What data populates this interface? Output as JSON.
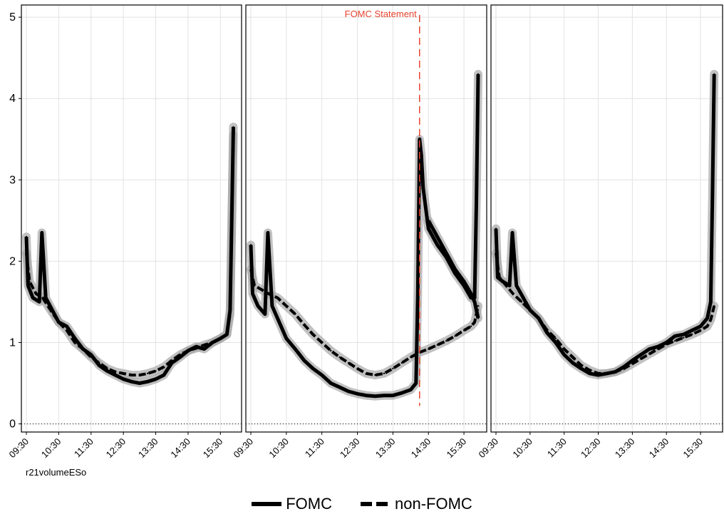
{
  "chart_data": {
    "type": "line",
    "caption": "r21volumeESo",
    "y_ticks": [
      0,
      1,
      2,
      3,
      4,
      5
    ],
    "ylim": [
      -0.1,
      5.15
    ],
    "x_tick_labels": [
      "09:30",
      "10:30",
      "11:30",
      "12:30",
      "13:30",
      "14:30",
      "15:30"
    ],
    "xlim": [
      9.5,
      16.0
    ],
    "grid": true,
    "legend": {
      "placement": "bottom",
      "entries": [
        {
          "label": "FOMC",
          "style": "solid"
        },
        {
          "label": "non-FOMC",
          "style": "dashed"
        }
      ]
    },
    "colors": {
      "series": "#000000",
      "band": "#a6a6a6",
      "annotation": "#e8442e",
      "grid": "#e2e2e2"
    },
    "panels": [
      {
        "annotation": null,
        "series": [
          {
            "name": "FOMC",
            "style": "solid",
            "x": [
              9.5,
              9.55,
              9.7,
              9.9,
              9.98,
              10.1,
              10.3,
              10.5,
              10.75,
              11.0,
              11.25,
              11.5,
              11.75,
              12.0,
              12.25,
              12.5,
              12.75,
              13.0,
              13.25,
              13.5,
              13.75,
              14.0,
              14.25,
              14.5,
              14.75,
              15.0,
              15.25,
              15.5,
              15.7,
              15.8,
              15.85,
              15.9
            ],
            "y": [
              2.3,
              1.7,
              1.55,
              1.5,
              2.35,
              1.55,
              1.4,
              1.25,
              1.2,
              1.05,
              0.92,
              0.85,
              0.72,
              0.65,
              0.6,
              0.55,
              0.52,
              0.5,
              0.52,
              0.55,
              0.6,
              0.75,
              0.82,
              0.9,
              0.95,
              0.92,
              1.0,
              1.05,
              1.1,
              1.4,
              2.5,
              3.65
            ]
          },
          {
            "name": "non-FOMC",
            "style": "dashed",
            "x": [
              9.5,
              9.6,
              9.8,
              10.0,
              10.25,
              10.5,
              10.75,
              11.0,
              11.25,
              11.5,
              11.75,
              12.0,
              12.25,
              12.5,
              12.75,
              13.0,
              13.25,
              13.5,
              13.75,
              14.0,
              14.25,
              14.5,
              14.75,
              15.0,
              15.25,
              15.5,
              15.7,
              15.8,
              15.85,
              15.9
            ],
            "y": [
              2.1,
              1.75,
              1.6,
              1.55,
              1.4,
              1.25,
              1.15,
              1.0,
              0.92,
              0.82,
              0.75,
              0.68,
              0.64,
              0.62,
              0.6,
              0.6,
              0.62,
              0.65,
              0.7,
              0.78,
              0.85,
              0.9,
              0.93,
              0.97,
              1.0,
              1.05,
              1.1,
              1.35,
              2.4,
              3.55
            ]
          }
        ]
      },
      {
        "annotation": {
          "label": "FOMC Statement",
          "x": 14.25
        },
        "series": [
          {
            "name": "FOMC",
            "style": "solid",
            "x": [
              9.5,
              9.55,
              9.7,
              9.9,
              9.98,
              10.1,
              10.3,
              10.5,
              10.75,
              11.0,
              11.25,
              11.5,
              11.75,
              12.0,
              12.25,
              12.5,
              12.75,
              13.0,
              13.25,
              13.5,
              13.75,
              14.0,
              14.15,
              14.2,
              14.25,
              14.3,
              14.35,
              14.5,
              14.75,
              15.0,
              15.25,
              15.5,
              15.7,
              15.8,
              15.85,
              15.9
            ],
            "y": [
              2.2,
              1.6,
              1.45,
              1.35,
              2.35,
              1.45,
              1.25,
              1.05,
              0.92,
              0.78,
              0.68,
              0.6,
              0.5,
              0.45,
              0.4,
              0.37,
              0.35,
              0.34,
              0.35,
              0.35,
              0.38,
              0.42,
              0.5,
              1.6,
              3.5,
              3.3,
              2.9,
              2.4,
              2.2,
              2.05,
              1.85,
              1.7,
              1.55,
              1.55,
              2.7,
              4.3
            ]
          },
          {
            "name": "non-FOMC",
            "style": "dashed",
            "x": [
              9.5,
              9.6,
              9.8,
              10.0,
              10.25,
              10.5,
              10.75,
              11.0,
              11.25,
              11.5,
              11.75,
              12.0,
              12.25,
              12.5,
              12.75,
              13.0,
              13.25,
              13.5,
              13.75,
              14.0,
              14.25,
              14.5,
              14.75,
              15.0,
              15.25,
              15.5,
              15.7,
              15.8,
              15.9
            ],
            "y": [
              1.9,
              1.7,
              1.65,
              1.6,
              1.55,
              1.45,
              1.35,
              1.22,
              1.1,
              1.0,
              0.9,
              0.82,
              0.75,
              0.68,
              0.62,
              0.6,
              0.62,
              0.68,
              0.75,
              0.82,
              0.88,
              0.92,
              0.97,
              1.02,
              1.08,
              1.15,
              1.2,
              1.25,
              1.45
            ]
          },
          {
            "name": "FOMC",
            "style": "solid",
            "x": [
              14.5,
              14.75,
              15.0,
              15.25,
              15.5,
              15.7,
              15.8,
              15.9
            ],
            "y": [
              2.5,
              2.3,
              2.1,
              1.9,
              1.75,
              1.6,
              1.5,
              1.3
            ]
          }
        ]
      },
      {
        "annotation": null,
        "series": [
          {
            "name": "FOMC",
            "style": "solid",
            "x": [
              9.5,
              9.55,
              9.7,
              9.9,
              9.98,
              10.1,
              10.3,
              10.5,
              10.75,
              11.0,
              11.25,
              11.5,
              11.75,
              12.0,
              12.25,
              12.5,
              12.75,
              13.0,
              13.25,
              13.5,
              13.75,
              14.0,
              14.25,
              14.5,
              14.75,
              15.0,
              15.25,
              15.5,
              15.7,
              15.8,
              15.85,
              15.9
            ],
            "y": [
              2.4,
              1.8,
              1.75,
              1.7,
              2.35,
              1.7,
              1.55,
              1.4,
              1.3,
              1.12,
              1.0,
              0.85,
              0.75,
              0.68,
              0.62,
              0.6,
              0.62,
              0.64,
              0.7,
              0.78,
              0.85,
              0.92,
              0.95,
              1.0,
              1.08,
              1.1,
              1.15,
              1.2,
              1.3,
              1.5,
              2.8,
              4.3
            ]
          },
          {
            "name": "non-FOMC",
            "style": "dashed",
            "x": [
              9.5,
              9.6,
              9.8,
              10.0,
              10.25,
              10.5,
              10.75,
              11.0,
              11.25,
              11.5,
              11.75,
              12.0,
              12.25,
              12.5,
              12.75,
              13.0,
              13.25,
              13.5,
              13.75,
              14.0,
              14.25,
              14.5,
              14.75,
              15.0,
              15.25,
              15.5,
              15.7,
              15.8,
              15.9
            ],
            "y": [
              2.1,
              1.8,
              1.7,
              1.6,
              1.5,
              1.4,
              1.3,
              1.15,
              1.05,
              0.92,
              0.82,
              0.72,
              0.66,
              0.62,
              0.62,
              0.64,
              0.68,
              0.74,
              0.8,
              0.86,
              0.92,
              0.98,
              1.02,
              1.06,
              1.1,
              1.15,
              1.2,
              1.28,
              1.45
            ]
          }
        ]
      }
    ]
  }
}
